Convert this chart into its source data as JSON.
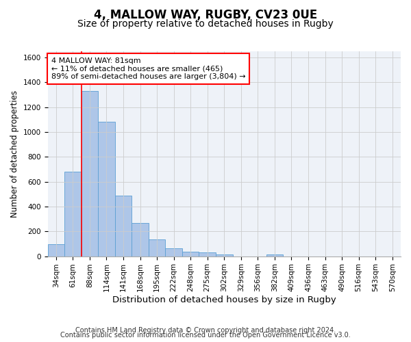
{
  "title_main": "4, MALLOW WAY, RUGBY, CV23 0UE",
  "title_sub": "Size of property relative to detached houses in Rugby",
  "xlabel": "Distribution of detached houses by size in Rugby",
  "ylabel": "Number of detached properties",
  "categories": [
    "34sqm",
    "61sqm",
    "88sqm",
    "114sqm",
    "141sqm",
    "168sqm",
    "195sqm",
    "222sqm",
    "248sqm",
    "275sqm",
    "302sqm",
    "329sqm",
    "356sqm",
    "382sqm",
    "409sqm",
    "436sqm",
    "463sqm",
    "490sqm",
    "516sqm",
    "543sqm",
    "570sqm"
  ],
  "bar_heights": [
    95,
    680,
    1330,
    1080,
    490,
    270,
    135,
    65,
    35,
    30,
    15,
    0,
    0,
    15,
    0,
    0,
    0,
    0,
    0,
    0,
    0
  ],
  "bar_color": "#aec6e8",
  "bar_edge_color": "#5a9fd4",
  "vline_x": 1.5,
  "annotation_line1": "4 MALLOW WAY: 81sqm",
  "annotation_line2": "← 11% of detached houses are smaller (465)",
  "annotation_line3": "89% of semi-detached houses are larger (3,804) →",
  "annotation_box_color": "white",
  "annotation_border_color": "red",
  "vline_color": "red",
  "ylim": [
    0,
    1650
  ],
  "yticks": [
    0,
    200,
    400,
    600,
    800,
    1000,
    1200,
    1400,
    1600
  ],
  "grid_color": "#cccccc",
  "background_color": "#eef2f8",
  "footer_line1": "Contains HM Land Registry data © Crown copyright and database right 2024.",
  "footer_line2": "Contains public sector information licensed under the Open Government Licence v3.0.",
  "title_fontsize": 12,
  "subtitle_fontsize": 10,
  "xlabel_fontsize": 9.5,
  "ylabel_fontsize": 8.5,
  "tick_fontsize": 7.5,
  "annotation_fontsize": 8,
  "footer_fontsize": 7
}
